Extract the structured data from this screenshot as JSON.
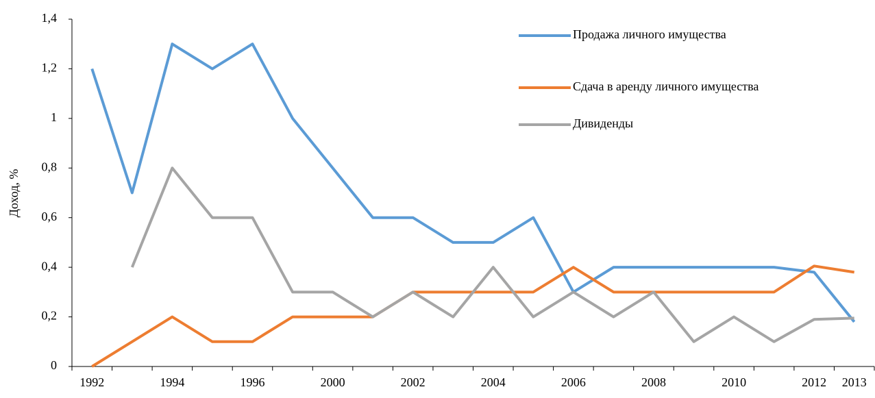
{
  "chart_data": {
    "type": "line",
    "y_label": "Доход, %",
    "categories": [
      "1992",
      null,
      "1994",
      null,
      "1996",
      null,
      "2000",
      null,
      "2002",
      null,
      "2004",
      null,
      "2006",
      null,
      "2008",
      null,
      "2010",
      null,
      "2012",
      "2013"
    ],
    "series": [
      {
        "name": "Продажа личного имущества",
        "color": "#5b9bd5",
        "values": [
          1.2,
          0.7,
          1.3,
          1.2,
          1.3,
          1.0,
          0.8,
          0.6,
          0.6,
          0.5,
          0.5,
          0.6,
          0.3,
          0.4,
          0.4,
          0.4,
          0.4,
          0.4,
          0.38,
          0.18
        ]
      },
      {
        "name": "Сдача в аренду личного имущества",
        "color": "#ed7d31",
        "values": [
          0,
          0.1,
          0.2,
          0.1,
          0.1,
          0.2,
          0.2,
          0.2,
          0.3,
          0.3,
          0.3,
          0.3,
          0.4,
          0.3,
          0.3,
          0.3,
          0.3,
          0.3,
          0.405,
          0.38
        ]
      },
      {
        "name": "Дивиденды",
        "color": "#a5a5a5",
        "values": [
          null,
          0.4,
          0.8,
          0.6,
          0.6,
          0.3,
          0.3,
          0.2,
          0.3,
          0.2,
          0.4,
          0.2,
          0.3,
          0.2,
          0.3,
          0.1,
          0.2,
          0.1,
          0.19,
          0.195
        ]
      }
    ],
    "ylim": [
      0,
      1.4
    ],
    "yticks": [
      0,
      {
        "value": 0.2,
        "label": "0,2"
      },
      {
        "value": 0.4,
        "label": "0,4"
      },
      {
        "value": 0.6,
        "label": "0,6"
      },
      {
        "value": 0.8,
        "label": "0,8"
      },
      1,
      {
        "value": 1.2,
        "label": "1,2"
      },
      {
        "value": 1.4,
        "label": "1,4"
      }
    ],
    "grid": false,
    "legend": "upper right"
  }
}
